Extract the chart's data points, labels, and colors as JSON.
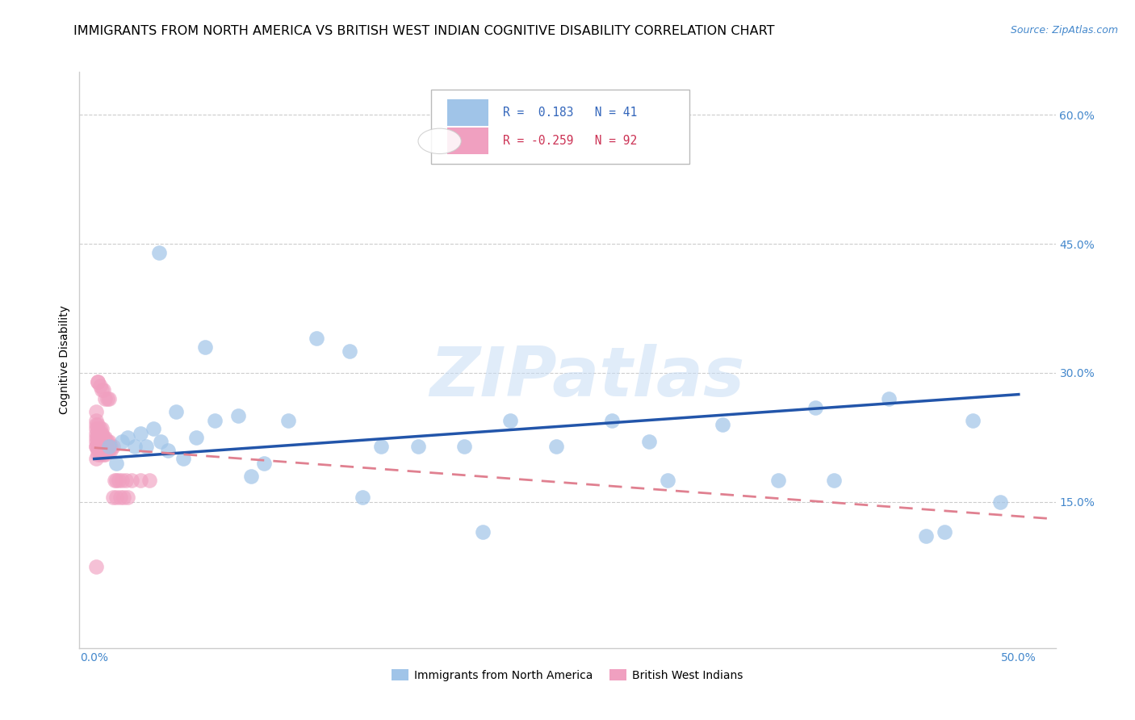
{
  "title": "IMMIGRANTS FROM NORTH AMERICA VS BRITISH WEST INDIAN COGNITIVE DISABILITY CORRELATION CHART",
  "source": "Source: ZipAtlas.com",
  "ylabel": "Cognitive Disability",
  "r1": 0.183,
  "n1": 41,
  "r2": -0.259,
  "n2": 92,
  "blue_color": "#a0c4e8",
  "pink_color": "#f0a0c0",
  "blue_line_color": "#2255aa",
  "pink_line_color": "#e08090",
  "legend1_label": "Immigrants from North America",
  "legend2_label": "British West Indians",
  "watermark_text": "ZIPatlas",
  "background_color": "#ffffff",
  "grid_color": "#cccccc",
  "title_color": "#000000",
  "source_color": "#4488cc",
  "tick_color": "#4488cc",
  "ylabel_color": "#000000",
  "title_fontsize": 11.5,
  "source_fontsize": 9,
  "tick_fontsize": 10,
  "ylabel_fontsize": 10,
  "legend_fontsize": 10,
  "blue_x": [
    0.008,
    0.012,
    0.015,
    0.018,
    0.022,
    0.025,
    0.028,
    0.032,
    0.036,
    0.04,
    0.044,
    0.048,
    0.055,
    0.065,
    0.078,
    0.092,
    0.105,
    0.12,
    0.138,
    0.155,
    0.175,
    0.2,
    0.225,
    0.25,
    0.28,
    0.31,
    0.34,
    0.37,
    0.4,
    0.43,
    0.46,
    0.475,
    0.49,
    0.035,
    0.06,
    0.085,
    0.145,
    0.21,
    0.3,
    0.39,
    0.45
  ],
  "blue_y": [
    0.215,
    0.195,
    0.22,
    0.225,
    0.215,
    0.23,
    0.215,
    0.235,
    0.22,
    0.21,
    0.255,
    0.2,
    0.225,
    0.245,
    0.25,
    0.195,
    0.245,
    0.34,
    0.325,
    0.215,
    0.215,
    0.215,
    0.245,
    0.215,
    0.245,
    0.175,
    0.24,
    0.175,
    0.175,
    0.27,
    0.115,
    0.245,
    0.15,
    0.44,
    0.33,
    0.18,
    0.155,
    0.115,
    0.22,
    0.26,
    0.11
  ],
  "pink_x": [
    0.001,
    0.001,
    0.001,
    0.001,
    0.001,
    0.001,
    0.001,
    0.001,
    0.001,
    0.001,
    0.002,
    0.002,
    0.002,
    0.002,
    0.002,
    0.002,
    0.002,
    0.002,
    0.002,
    0.002,
    0.003,
    0.003,
    0.003,
    0.003,
    0.003,
    0.003,
    0.003,
    0.003,
    0.003,
    0.003,
    0.004,
    0.004,
    0.004,
    0.004,
    0.004,
    0.004,
    0.004,
    0.004,
    0.004,
    0.004,
    0.005,
    0.005,
    0.005,
    0.005,
    0.005,
    0.005,
    0.005,
    0.005,
    0.005,
    0.005,
    0.006,
    0.006,
    0.006,
    0.006,
    0.006,
    0.006,
    0.006,
    0.006,
    0.006,
    0.006,
    0.007,
    0.007,
    0.007,
    0.007,
    0.008,
    0.008,
    0.008,
    0.009,
    0.009,
    0.01,
    0.011,
    0.012,
    0.013,
    0.015,
    0.017,
    0.02,
    0.025,
    0.03,
    0.01,
    0.012,
    0.014,
    0.016,
    0.018,
    0.006,
    0.007,
    0.008,
    0.004,
    0.005,
    0.003,
    0.002,
    0.001,
    0.002
  ],
  "pink_y": [
    0.215,
    0.235,
    0.22,
    0.245,
    0.255,
    0.225,
    0.2,
    0.215,
    0.23,
    0.24,
    0.215,
    0.23,
    0.225,
    0.21,
    0.24,
    0.22,
    0.235,
    0.215,
    0.205,
    0.225,
    0.215,
    0.225,
    0.23,
    0.215,
    0.22,
    0.235,
    0.21,
    0.225,
    0.215,
    0.205,
    0.215,
    0.22,
    0.225,
    0.21,
    0.23,
    0.215,
    0.235,
    0.215,
    0.21,
    0.22,
    0.215,
    0.225,
    0.215,
    0.21,
    0.22,
    0.215,
    0.205,
    0.225,
    0.215,
    0.21,
    0.215,
    0.22,
    0.21,
    0.215,
    0.225,
    0.215,
    0.21,
    0.205,
    0.215,
    0.22,
    0.215,
    0.21,
    0.22,
    0.215,
    0.215,
    0.21,
    0.22,
    0.215,
    0.21,
    0.215,
    0.175,
    0.175,
    0.175,
    0.175,
    0.175,
    0.175,
    0.175,
    0.175,
    0.155,
    0.155,
    0.155,
    0.155,
    0.155,
    0.27,
    0.27,
    0.27,
    0.28,
    0.28,
    0.285,
    0.29,
    0.075,
    0.29
  ],
  "blue_trend_x": [
    0.0,
    0.5
  ],
  "blue_trend_y": [
    0.2,
    0.275
  ],
  "pink_trend_x": [
    0.0,
    0.52
  ],
  "pink_trend_y": [
    0.213,
    0.13
  ],
  "xlim": [
    -0.008,
    0.52
  ],
  "ylim": [
    -0.02,
    0.65
  ],
  "yticks": [
    0.0,
    0.15,
    0.3,
    0.45,
    0.6
  ],
  "xticks": [
    0.0,
    0.1,
    0.2,
    0.3,
    0.4,
    0.5
  ]
}
